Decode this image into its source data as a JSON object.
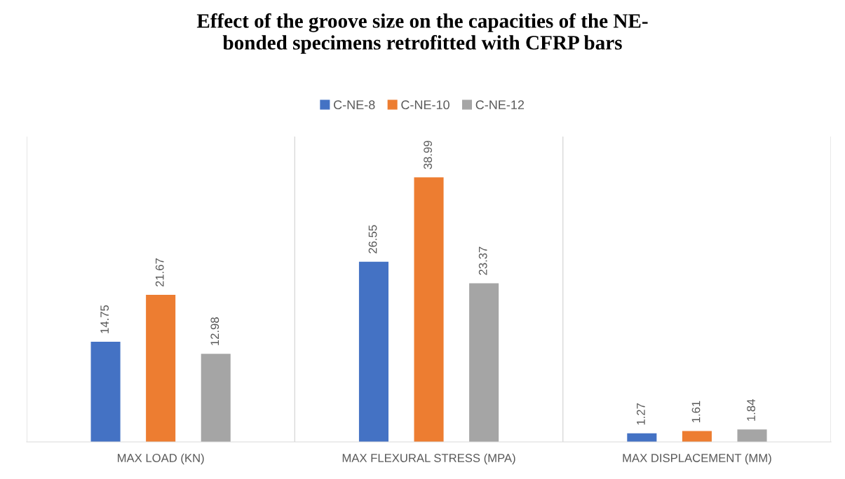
{
  "chart_data": {
    "type": "bar",
    "title": "Effect of the groove size on the capacities of the NE-\nbonded specimens retrofitted with CFRP bars",
    "categories": [
      "MAX LOAD (KN)",
      "MAX FLEXURAL STRESS (MPA)",
      "MAX DISPLACEMENT (MM)"
    ],
    "series": [
      {
        "name": "C-NE-8",
        "color": "#4472c4",
        "values": [
          14.75,
          26.55,
          1.27
        ]
      },
      {
        "name": "C-NE-10",
        "color": "#ed7d31",
        "values": [
          21.67,
          38.99,
          1.61
        ]
      },
      {
        "name": "C-NE-12",
        "color": "#a5a5a5",
        "values": [
          12.98,
          23.37,
          1.84
        ]
      }
    ],
    "ylim": [
      0,
      45
    ],
    "tick_labels": "x",
    "data_labels": true,
    "grid": "x",
    "legend": "top"
  }
}
